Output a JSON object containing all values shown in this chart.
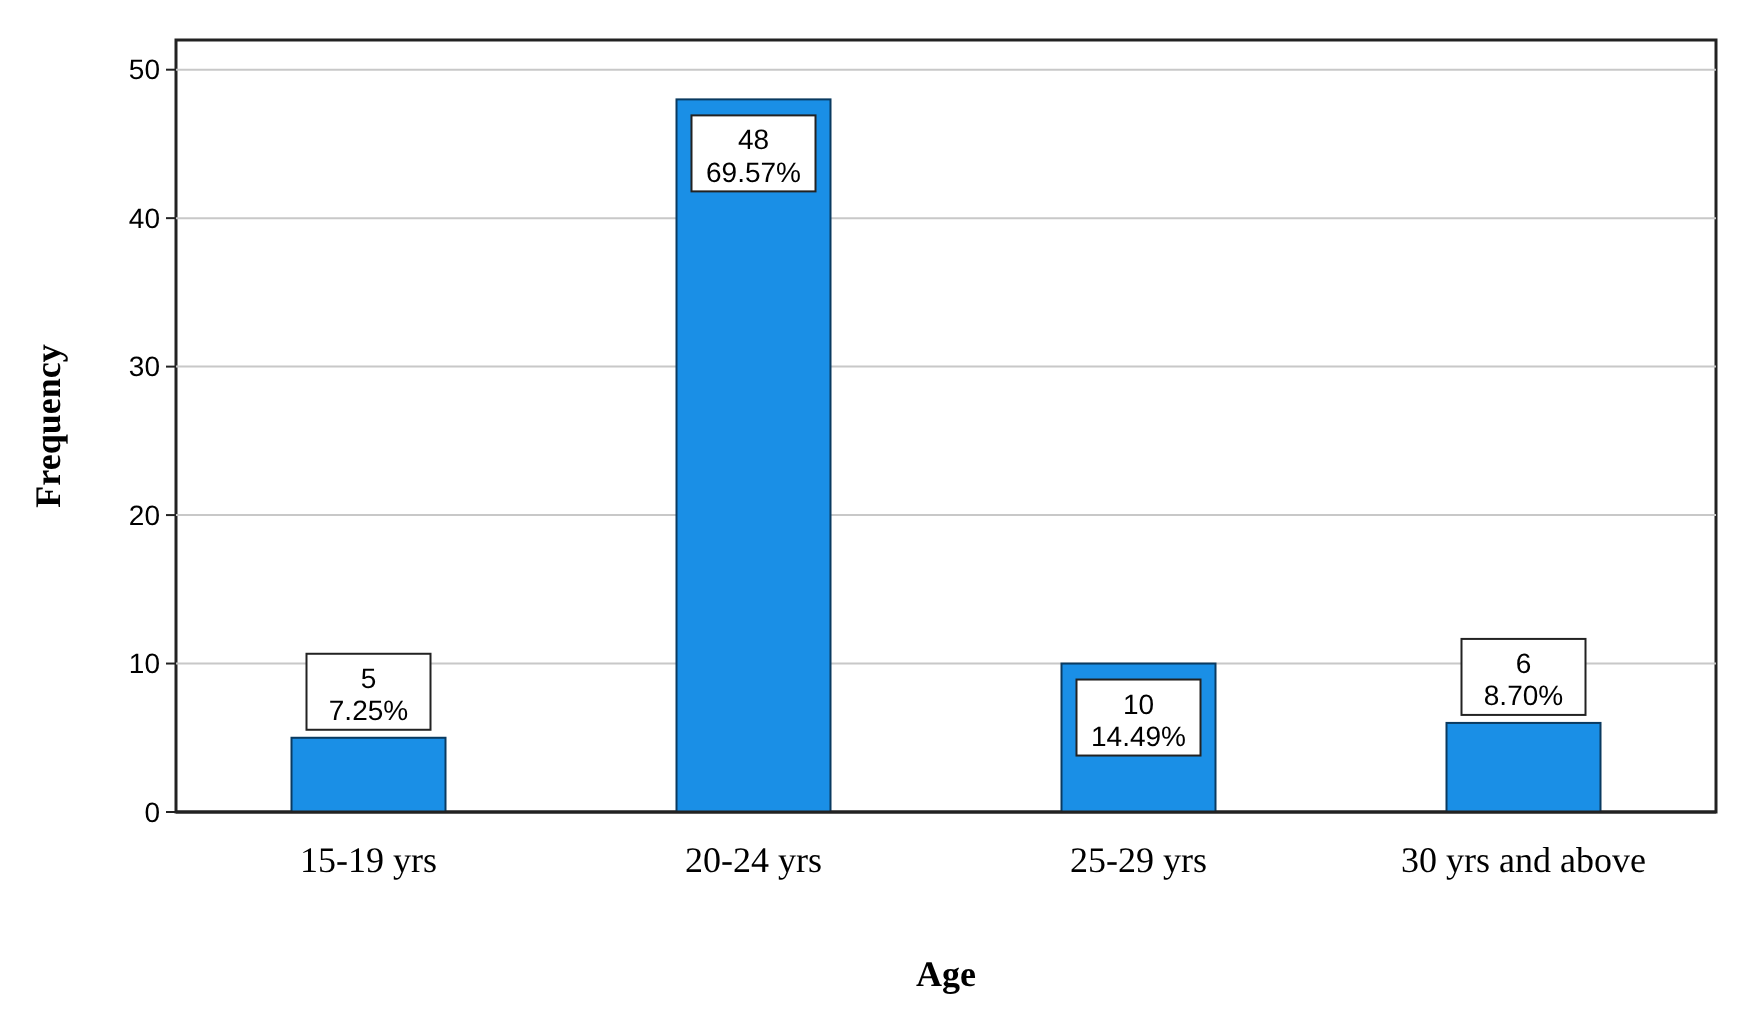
{
  "chart_data": {
    "type": "bar",
    "xlabel": "Age",
    "ylabel": "Frequency",
    "categories": [
      "15-19 yrs",
      "20-24 yrs",
      "25-29 yrs",
      "30 yrs and above"
    ],
    "values": [
      5,
      48,
      10,
      6
    ],
    "value_labels": [
      "5\n7.25%",
      "48\n69.57%",
      "10\n14.49%",
      "6\n8.70%"
    ],
    "color": "#1a8fe6",
    "ylim": [
      0,
      52
    ],
    "yticks": [
      0,
      10,
      20,
      30,
      40,
      50
    ],
    "grid": "y"
  }
}
